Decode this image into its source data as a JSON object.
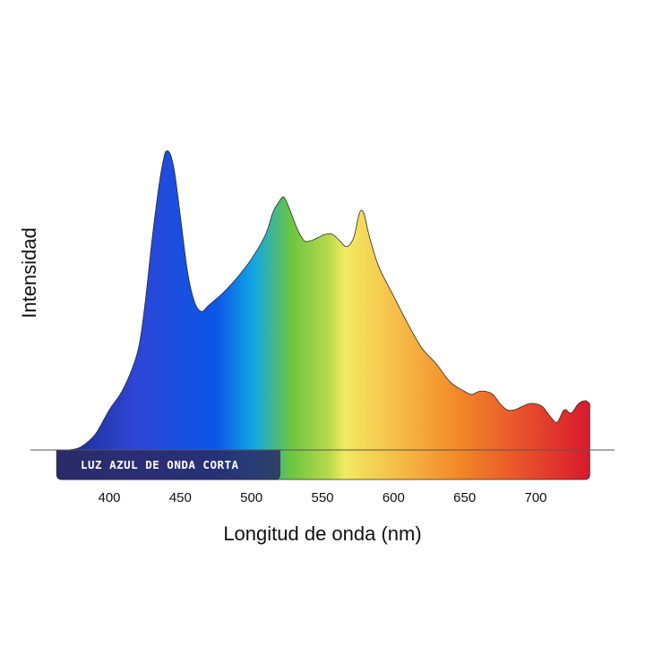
{
  "chart_data": {
    "type": "area",
    "title": "",
    "xlabel": "Longitud de onda (nm)",
    "ylabel": "Intensidad",
    "xlim": [
      363,
      740
    ],
    "ylim": [
      0,
      100
    ],
    "xticks": [
      400,
      450,
      500,
      550,
      600,
      650,
      700
    ],
    "grid": false,
    "legend": "none",
    "series": [
      {
        "x": [
          372,
          380,
          390,
          400,
          410,
          420,
          425,
          430,
          435,
          438,
          440,
          443,
          446,
          450,
          455,
          460,
          465,
          470,
          480,
          490,
          500,
          510,
          515,
          520,
          523,
          527,
          532,
          537,
          542,
          547,
          552,
          557,
          562,
          567,
          572,
          576,
          579,
          582,
          585,
          590,
          600,
          610,
          620,
          630,
          640,
          650,
          655,
          660,
          665,
          670,
          675,
          680,
          685,
          690,
          695,
          700,
          705,
          710,
          715,
          720,
          725,
          730,
          735,
          738
        ],
        "values": [
          0,
          1,
          5,
          13,
          20,
          32,
          47,
          68,
          86,
          94,
          97,
          96,
          90,
          76,
          58,
          48,
          45,
          47,
          51,
          56,
          62,
          70,
          77,
          81,
          82,
          78,
          72,
          68,
          68,
          69,
          70,
          70,
          68,
          66,
          69,
          77,
          77,
          71,
          66,
          59,
          50,
          41,
          33,
          28,
          22,
          19,
          18,
          19,
          19,
          18,
          15,
          13,
          13,
          14,
          15,
          15,
          14,
          11,
          9,
          13,
          12,
          15,
          16,
          15
        ]
      }
    ],
    "highlight_band": {
      "label": "LUZ AZUL DE ONDA CORTA",
      "x_range": [
        363,
        520
      ]
    }
  },
  "colors": {
    "axis": "#555555",
    "band_fill": "#2c2a63",
    "gradient": [
      "#1d2a8a",
      "#2d46d6",
      "#0b56e8",
      "#12a6e3",
      "#6cc640",
      "#f2ea62",
      "#f5c14a",
      "#f18a28",
      "#e9562b",
      "#d8182c"
    ]
  }
}
